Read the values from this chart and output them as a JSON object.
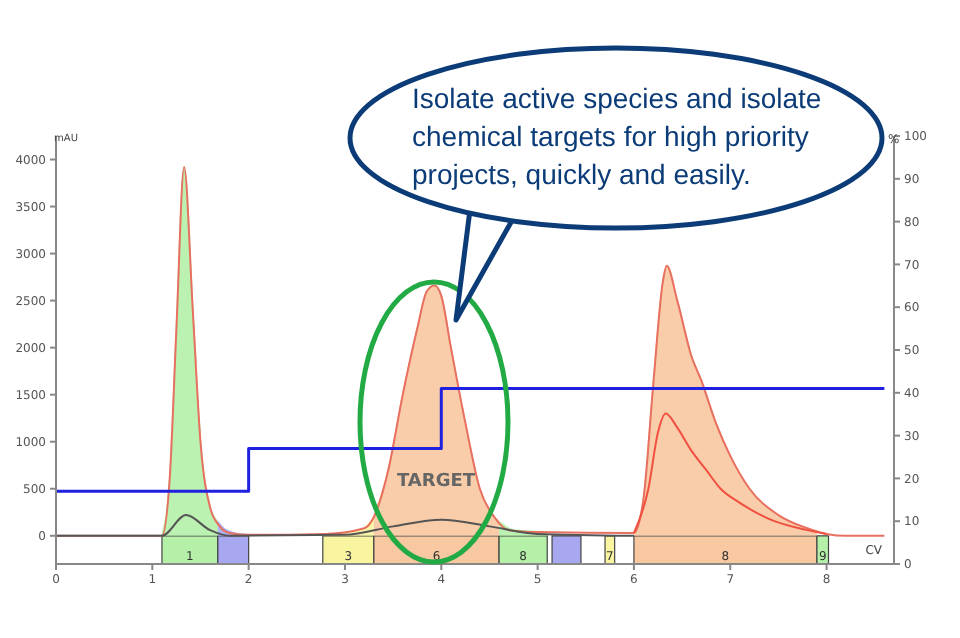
{
  "chart_data": {
    "type": "area",
    "xlabel": "CV",
    "ylabel": "mAU",
    "y2label": "%",
    "xlim": [
      0,
      8.7
    ],
    "xticks": [
      0,
      1,
      2,
      3,
      4,
      5,
      6,
      7,
      8
    ],
    "ylim": [
      -300,
      4250
    ],
    "yticks": [
      0,
      500,
      1000,
      1500,
      2000,
      2500,
      3000,
      3500,
      4000
    ],
    "y2lim": [
      0,
      100
    ],
    "y2ticks": [
      0,
      10,
      20,
      30,
      40,
      50,
      60,
      70,
      80,
      90,
      100
    ],
    "grid": false,
    "legend": false,
    "series": [
      {
        "color": "#b4f0a8",
        "x": [
          1.1,
          1.18,
          1.25,
          1.33,
          1.42,
          1.5,
          1.6,
          1.68
        ],
        "values": [
          0,
          600,
          2200,
          3920,
          2400,
          1000,
          300,
          150
        ]
      },
      {
        "color": "#a8a8f0",
        "x": [
          1.68,
          1.75,
          1.85,
          2.0
        ],
        "values": [
          150,
          70,
          30,
          10
        ]
      },
      {
        "color": "#f8f4a0",
        "x": [
          2.77,
          3.0,
          3.2,
          3.3
        ],
        "values": [
          20,
          20,
          80,
          200
        ]
      },
      {
        "color": "#f8c8a0",
        "x": [
          3.3,
          3.45,
          3.6,
          3.75,
          3.85,
          3.93,
          4.0,
          4.1,
          4.25,
          4.4,
          4.6
        ],
        "values": [
          200,
          700,
          1500,
          2200,
          2600,
          2660,
          2550,
          2000,
          1200,
          500,
          150
        ]
      },
      {
        "color": "#b4f0a8",
        "x": [
          4.6,
          4.75,
          5.1
        ],
        "values": [
          150,
          60,
          40
        ]
      },
      {
        "color": "#f8c8a0",
        "x": [
          6.0,
          6.1,
          6.2,
          6.3,
          6.34,
          6.45,
          6.6,
          6.7,
          6.85,
          7.0,
          7.2,
          7.5,
          7.8,
          7.9
        ],
        "values": [
          30,
          400,
          1600,
          2700,
          2870,
          2500,
          1900,
          1650,
          1200,
          850,
          500,
          220,
          80,
          50
        ]
      },
      {
        "type": "line",
        "color": "#e87060",
        "x": [
          0,
          1.1,
          1.18,
          1.25,
          1.33,
          1.42,
          1.5,
          1.6,
          1.7,
          1.8,
          2.0,
          2.8,
          3.2,
          3.3,
          3.45,
          3.6,
          3.75,
          3.85,
          3.93,
          4.0,
          4.1,
          4.25,
          4.4,
          4.55,
          4.7,
          5.0,
          6.0,
          6.1,
          6.2,
          6.3,
          6.34,
          6.45,
          6.6,
          6.7,
          6.85,
          7.0,
          7.2,
          7.5,
          7.8,
          8.0,
          8.2,
          8.6
        ],
        "values": [
          0,
          0,
          600,
          2200,
          3920,
          2400,
          1000,
          300,
          100,
          30,
          10,
          20,
          80,
          200,
          700,
          1500,
          2200,
          2600,
          2660,
          2550,
          2000,
          1200,
          500,
          200,
          60,
          40,
          30,
          400,
          1600,
          2700,
          2870,
          2500,
          1900,
          1650,
          1200,
          850,
          500,
          220,
          80,
          20,
          0,
          0
        ]
      },
      {
        "type": "line",
        "color": "#555555",
        "x": [
          0,
          1.1,
          1.35,
          1.6,
          1.8,
          3.0,
          3.5,
          4.0,
          4.5,
          5.0,
          6.0
        ],
        "values": [
          0,
          0,
          220,
          60,
          0,
          10,
          100,
          170,
          100,
          20,
          0
        ]
      },
      {
        "type": "line",
        "color": "#f05040",
        "x": [
          6.0,
          6.15,
          6.25,
          6.33,
          6.45,
          6.6,
          6.75,
          6.9,
          7.1,
          7.4,
          7.8,
          8.0
        ],
        "values": [
          30,
          500,
          1100,
          1300,
          1150,
          900,
          700,
          500,
          350,
          180,
          60,
          20
        ]
      },
      {
        "type": "step",
        "axis": "y2",
        "color": "#2020e0",
        "x": [
          0,
          2,
          4,
          8.6
        ],
        "values": [
          17,
          27,
          41,
          41
        ]
      }
    ],
    "bands": [
      {
        "axis": "x",
        "from": 1.1,
        "to": 1.68,
        "color": "#b4f0a8",
        "label": "1"
      },
      {
        "axis": "x",
        "from": 1.68,
        "to": 2.0,
        "color": "#a8a8f0"
      },
      {
        "axis": "x",
        "from": 2.77,
        "to": 3.3,
        "color": "#f8f4a0",
        "label": "3"
      },
      {
        "axis": "x",
        "from": 3.3,
        "to": 4.6,
        "color": "#f8c8a0",
        "label": "6"
      },
      {
        "axis": "x",
        "from": 4.6,
        "to": 5.1,
        "color": "#b4f0a8",
        "label": "8"
      },
      {
        "axis": "x",
        "from": 5.15,
        "to": 5.45,
        "color": "#a8a8f0"
      },
      {
        "axis": "x",
        "from": 5.7,
        "to": 5.8,
        "color": "#f8f4a0",
        "label": "7"
      },
      {
        "axis": "x",
        "from": 6.0,
        "to": 7.9,
        "color": "#f8c8a0",
        "label": "8"
      },
      {
        "axis": "x",
        "from": 7.9,
        "to": 8.02,
        "color": "#b4f0a8",
        "label": "9"
      }
    ],
    "annotations": [
      "Isolate active species and isolate chemical targets for high priority projects, quickly and easily.",
      "TARGET"
    ]
  }
}
